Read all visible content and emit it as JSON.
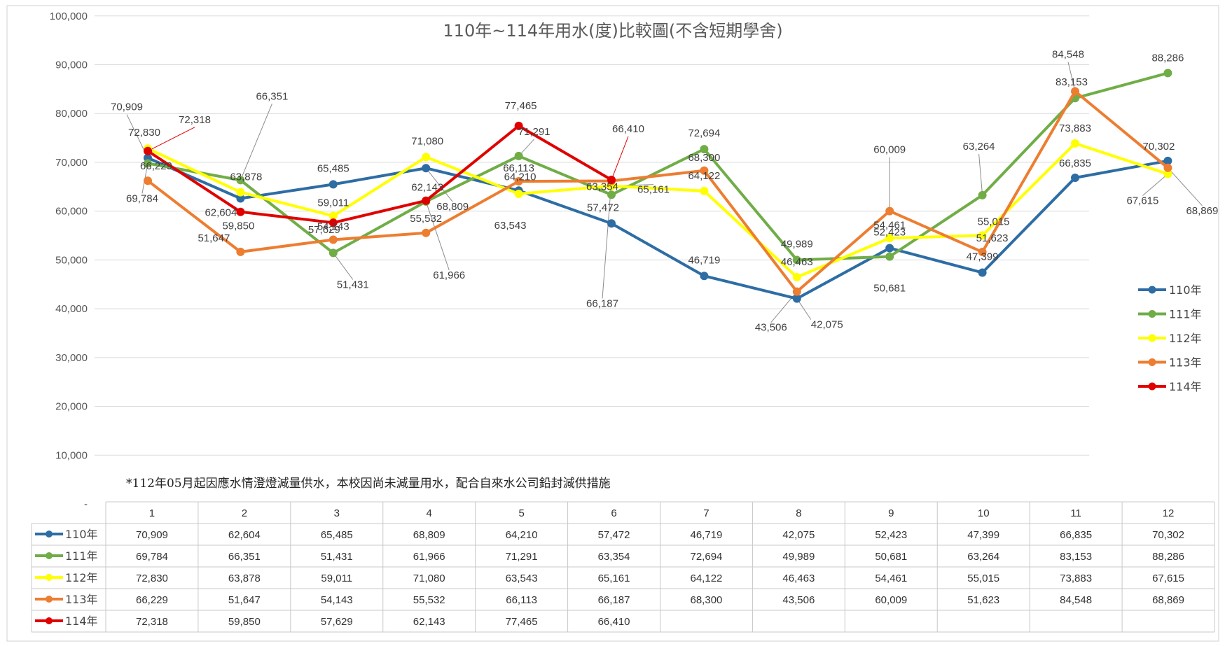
{
  "chart_data": {
    "type": "line",
    "title": "110年~114年用水(度)比較圖(不含短期學舍)",
    "note": "*112年05月起因應水情澄燈減量供水，本校因尚未減量用水，配合自來水公司鉛封減供措施",
    "categories": [
      "1",
      "2",
      "3",
      "4",
      "5",
      "6",
      "7",
      "8",
      "9",
      "10",
      "11",
      "12"
    ],
    "ylim": [
      0,
      100000
    ],
    "yticks": [
      "-",
      "10,000",
      "20,000",
      "30,000",
      "40,000",
      "50,000",
      "60,000",
      "70,000",
      "80,000",
      "90,000",
      "100,000"
    ],
    "grid": true,
    "legend_position": "right",
    "series": [
      {
        "name": "110年",
        "color": "#2E6DA4",
        "values": [
          70909,
          62604,
          65485,
          68809,
          64210,
          57472,
          46719,
          42075,
          52423,
          47399,
          66835,
          70302
        ],
        "labels": [
          "70,909",
          "62,604",
          "65,485",
          "68,809",
          "64,210",
          "57,472",
          "46,719",
          "42,075",
          "52,423",
          "47,399",
          "66,835",
          "70,302"
        ]
      },
      {
        "name": "111年",
        "color": "#70AD47",
        "values": [
          69784,
          66351,
          51431,
          61966,
          71291,
          63354,
          72694,
          49989,
          50681,
          63264,
          83153,
          88286
        ],
        "labels": [
          "69,784",
          "66,351",
          "51,431",
          "61,966",
          "71,291",
          "63,354",
          "72,694",
          "49,989",
          "50,681",
          "63,264",
          "83,153",
          "88,286"
        ]
      },
      {
        "name": "112年",
        "color": "#FFFF00",
        "values": [
          72830,
          63878,
          59011,
          71080,
          63543,
          65161,
          64122,
          46463,
          54461,
          55015,
          73883,
          67615
        ],
        "labels": [
          "72,830",
          "63,878",
          "59,011",
          "71,080",
          "63,543",
          "65,161",
          "64,122",
          "46,463",
          "54,461",
          "55,015",
          "73,883",
          "67,615"
        ]
      },
      {
        "name": "113年",
        "color": "#ED7D31",
        "values": [
          66229,
          51647,
          54143,
          55532,
          66113,
          66187,
          68300,
          43506,
          60009,
          51623,
          84548,
          68869
        ],
        "labels": [
          "66,229",
          "51,647",
          "54,143",
          "55,532",
          "66,113",
          "66,187",
          "68,300",
          "43,506",
          "60,009",
          "51,623",
          "84,548",
          "68,869"
        ]
      },
      {
        "name": "114年",
        "color": "#E00000",
        "values": [
          72318,
          59850,
          57629,
          62143,
          77465,
          66410,
          null,
          null,
          null,
          null,
          null,
          null
        ],
        "labels": [
          "72,318",
          "59,850",
          "57,629",
          "62,143",
          "77,465",
          "66,410",
          "",
          "",
          "",
          "",
          "",
          ""
        ]
      }
    ]
  }
}
